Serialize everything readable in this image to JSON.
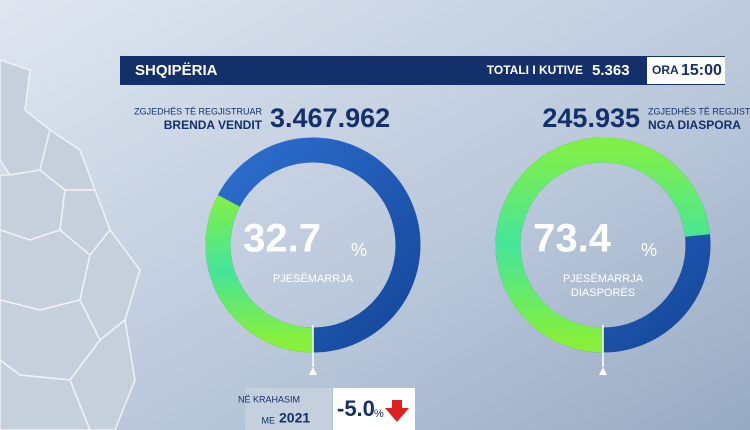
{
  "header": {
    "title": "SHQIPËRIA",
    "boxes_label": "TOTALI I KUTIVE",
    "boxes_value": "5.363",
    "time_label": "ORA",
    "time_value": "15:00"
  },
  "domestic": {
    "label_top": "ZGJEDHËS TË REGJISTRUAR",
    "label_bottom": "BRENDA VENDIT",
    "registered": "3.467.962",
    "turnout": 32.7,
    "unit": "%",
    "caption": [
      "PJESËMARRJA"
    ]
  },
  "diaspora": {
    "label_top": "ZGJEDHËS TË REGJISTRUAR",
    "label_bottom": "NGA DIASPORA",
    "registered": "245.935",
    "turnout": 73.4,
    "unit": "%",
    "caption": [
      "PJESËMARRJA",
      "DIASPORËS"
    ]
  },
  "comparison": {
    "label_lines": [
      "NË KRAHASIM",
      "ME"
    ],
    "year": "2021",
    "change": {
      "value": -5,
      "label": "-5.0"
    },
    "unit": "%"
  }
}
